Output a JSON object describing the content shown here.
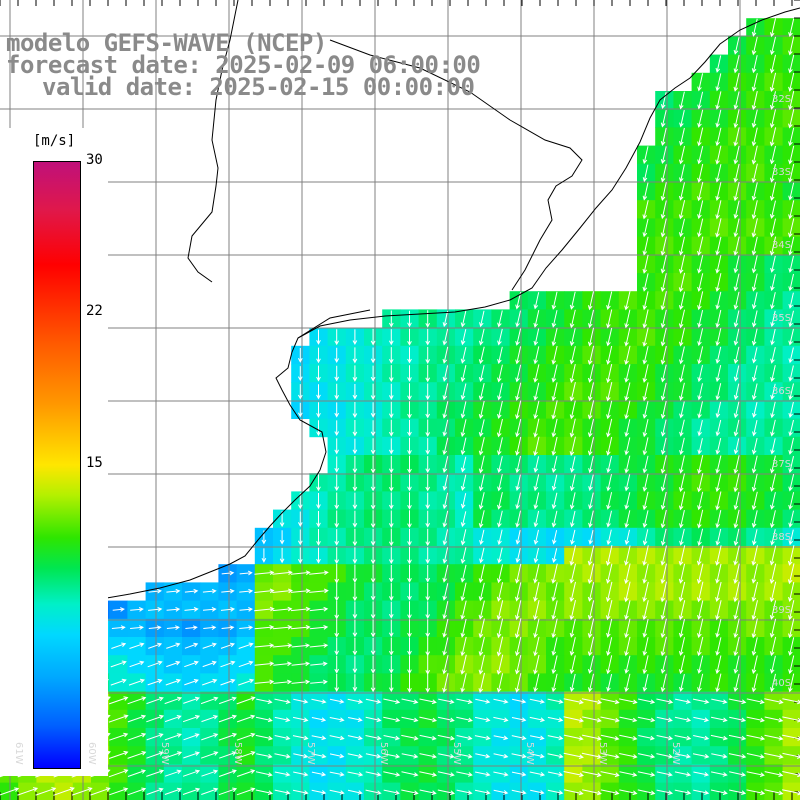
{
  "title": {
    "line1": "modelo GEFS-WAVE (NCEP)",
    "line2": "forecast date: 2025-02-09 06:00:00",
    "line3": "valid date: 2025-02-15 00:00:00"
  },
  "colorbar": {
    "unit": "[m/s]",
    "ticks": [
      "30",
      "22",
      "15"
    ],
    "min": 0,
    "max": 30
  },
  "axis": {
    "lon_labels": [
      "61W",
      "60W",
      "59W",
      "58W",
      "57W",
      "56W",
      "55W",
      "54W",
      "53W",
      "52W"
    ],
    "lat_labels": [
      "32S",
      "33S",
      "34S",
      "35S",
      "36S",
      "37S",
      "38S",
      "39S",
      "40S"
    ]
  },
  "colors": {
    "title": "#8a8a8a",
    "grid": "#808080",
    "coast": "#000000",
    "arrows": "#ffffff"
  },
  "chart_data": {
    "type": "heatmap",
    "variable": "wind speed",
    "units": "m/s",
    "lon_range": [
      -61.3,
      -50.3
    ],
    "lat_range": [
      -41.0,
      -30.0
    ],
    "wind_speed_regions": [
      {
        "area": "northeast open ocean",
        "speed_ms": 11
      },
      {
        "area": "Rio de la Plata estuary",
        "speed_ms": 7
      },
      {
        "area": "central shelf band",
        "speed_ms": 9
      },
      {
        "area": "southwest near coast",
        "speed_ms": 4
      },
      {
        "area": "southern open ocean",
        "speed_ms": 12
      }
    ],
    "wind_direction": "southward (north to south) over most of the domain, eastward in the southwest corner"
  }
}
